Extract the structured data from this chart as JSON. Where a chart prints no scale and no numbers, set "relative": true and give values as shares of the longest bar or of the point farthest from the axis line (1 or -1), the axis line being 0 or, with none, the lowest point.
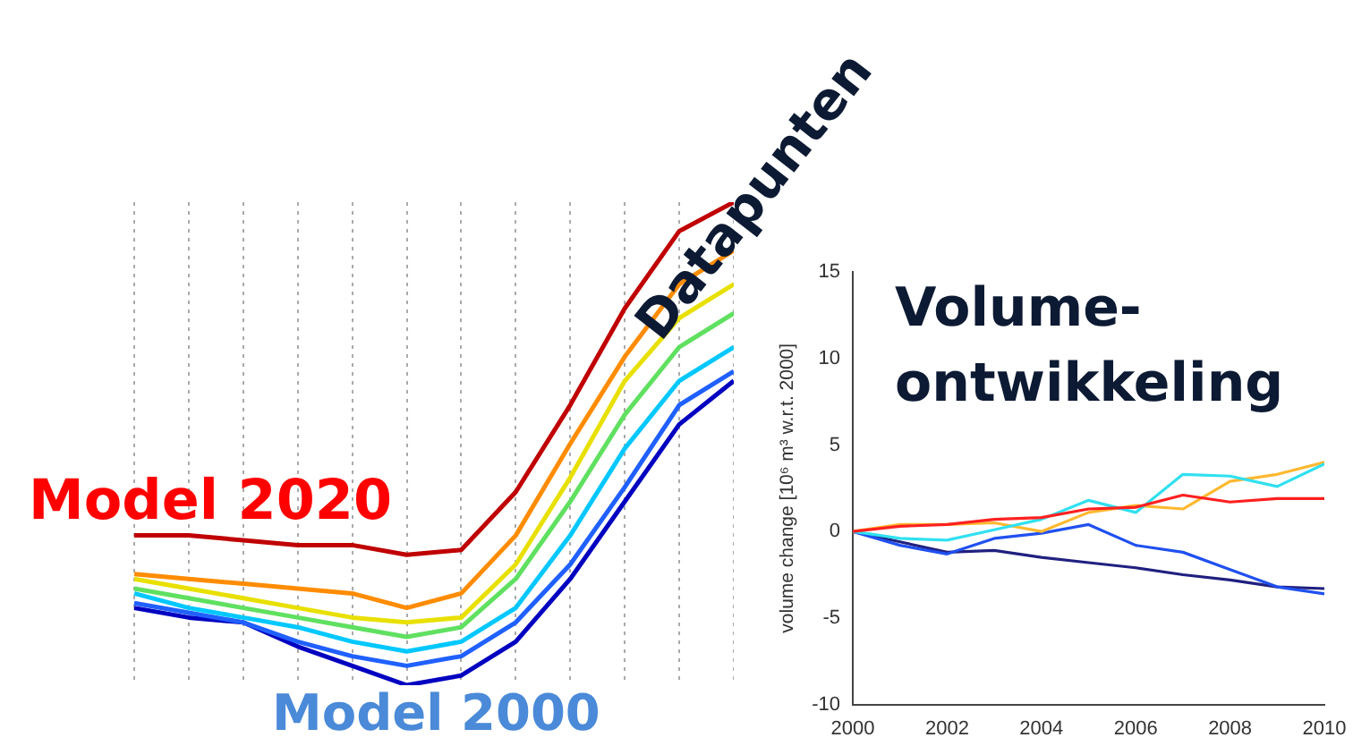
{
  "chart_data": [
    {
      "type": "line",
      "relative": true,
      "grid": "x",
      "legend": false,
      "tick_labels": false,
      "marker": "none",
      "line_style": "solid",
      "categories": [
        null,
        null,
        null,
        null,
        null,
        null,
        null,
        null,
        null,
        null,
        null,
        null
      ],
      "series": [
        {
          "color": "#c00000",
          "values": [
            0.31,
            0.31,
            0.3,
            0.29,
            0.29,
            0.27,
            0.28,
            0.4,
            0.58,
            0.78,
            0.94,
            1
          ]
        },
        {
          "color": "#ff8c00",
          "values": [
            0.23,
            0.22,
            0.21,
            0.2,
            0.19,
            0.16,
            0.19,
            0.31,
            0.5,
            0.68,
            0.83,
            0.9
          ]
        },
        {
          "color": "#e8e000",
          "values": [
            0.22,
            0.2,
            0.18,
            0.16,
            0.14,
            0.13,
            0.14,
            0.25,
            0.43,
            0.63,
            0.76,
            0.83
          ]
        },
        {
          "color": "#60e060",
          "values": [
            0.2,
            0.18,
            0.16,
            0.14,
            0.12,
            0.1,
            0.12,
            0.22,
            0.38,
            0.56,
            0.7,
            0.77
          ]
        },
        {
          "color": "#00c8ff",
          "values": [
            0.19,
            0.16,
            0.14,
            0.12,
            0.09,
            0.07,
            0.09,
            0.16,
            0.31,
            0.49,
            0.63,
            0.7
          ]
        },
        {
          "color": "#2060ff",
          "values": [
            0.17,
            0.15,
            0.13,
            0.09,
            0.06,
            0.04,
            0.06,
            0.13,
            0.25,
            0.41,
            0.58,
            0.65
          ]
        },
        {
          "color": "#0000c0",
          "values": [
            0.16,
            0.14,
            0.13,
            0.08,
            0.04,
            0,
            0.02,
            0.09,
            0.22,
            0.38,
            0.54,
            0.63
          ]
        }
      ],
      "annotations": [
        "Model 2020",
        "Model 2000",
        "Datapunten"
      ]
    },
    {
      "type": "line",
      "title": "Volume-ontwikkeling",
      "ylabel": "volume change [10⁶ m³ w.r.t. 2000]",
      "grid": false,
      "legend": false,
      "marker": "none",
      "line_style": "solid",
      "x": [
        2000,
        2001,
        2002,
        2003,
        2004,
        2005,
        2006,
        2007,
        2008,
        2009,
        2010
      ],
      "xlim": [
        2000,
        2010
      ],
      "xticks": [
        2000,
        2002,
        2004,
        2006,
        2008,
        2010
      ],
      "ylim": [
        -10,
        15
      ],
      "yticks": [
        -10,
        -5,
        0,
        5,
        10,
        15
      ],
      "series": [
        {
          "color": "#ff2020",
          "values": [
            0,
            0.3,
            0.4,
            0.7,
            0.8,
            1.3,
            1.4,
            2.1,
            1.7,
            1.9,
            1.9
          ]
        },
        {
          "color": "#30e0f0",
          "values": [
            0,
            -0.4,
            -0.5,
            0.1,
            0.7,
            1.8,
            1.1,
            3.3,
            3.2,
            2.6,
            3.9
          ]
        },
        {
          "color": "#ffb830",
          "values": [
            0,
            0.4,
            0.4,
            0.5,
            0,
            1.1,
            1.5,
            1.3,
            2.9,
            3.3,
            4.0
          ]
        },
        {
          "color": "#2050f0",
          "values": [
            0,
            -0.8,
            -1.3,
            -0.4,
            -0.1,
            0.4,
            -0.8,
            -1.2,
            -2.2,
            -3.2,
            -3.6
          ]
        },
        {
          "color": "#202080",
          "values": [
            0,
            -0.6,
            -1.2,
            -1.1,
            -1.5,
            -1.8,
            -2.1,
            -2.5,
            -2.8,
            -3.2,
            -3.3
          ]
        }
      ]
    }
  ]
}
